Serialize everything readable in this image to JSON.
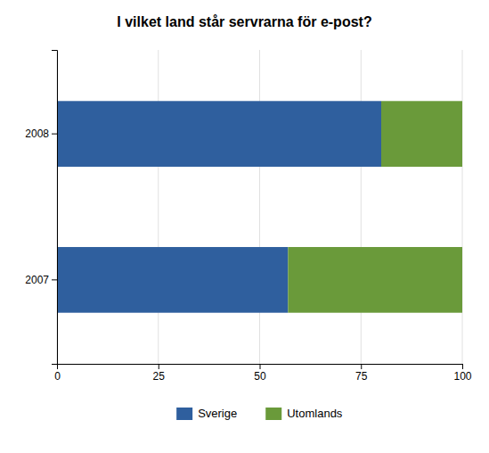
{
  "chart_data": {
    "type": "bar",
    "title": "I vilket land står servrarna för e-post?",
    "orientation": "horizontal",
    "stacked": true,
    "categories": [
      "2008",
      "2007"
    ],
    "series": [
      {
        "name": "Sverige",
        "color": "#2f5f9e",
        "values": [
          80,
          57
        ]
      },
      {
        "name": "Utomlands",
        "color": "#6a9a3a",
        "values": [
          20,
          43
        ]
      }
    ],
    "xlim": [
      0,
      100
    ],
    "xticks": [
      0,
      25,
      50,
      75,
      100
    ],
    "grid": true,
    "legend": "bottom"
  }
}
